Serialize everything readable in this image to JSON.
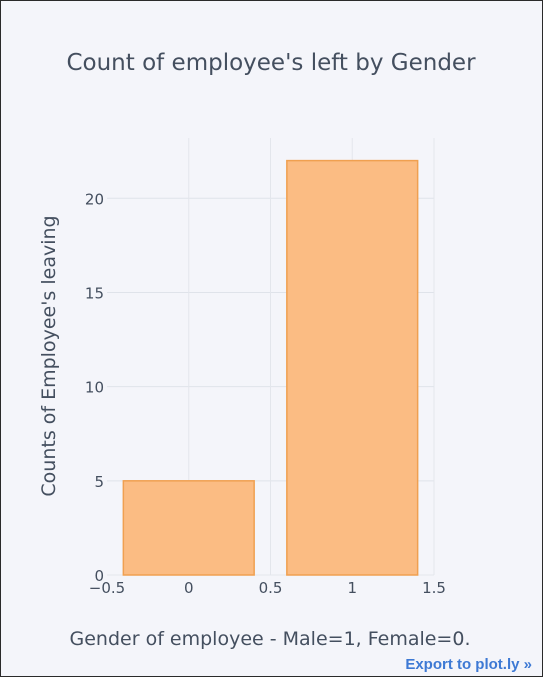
{
  "chart_data": {
    "type": "bar",
    "title": "Count of employee's left by Gender",
    "xlabel": "Gender of employee - Male=1, Female=0.",
    "ylabel": "Counts of Employee's leaving",
    "x": [
      0,
      1
    ],
    "values": [
      5,
      22
    ],
    "xlim": [
      -0.5,
      1.5
    ],
    "ylim": [
      0,
      23.2
    ],
    "xticks": [
      -0.5,
      0,
      0.5,
      1,
      1.5
    ],
    "xtick_labels": [
      "−0.5",
      "0",
      "0.5",
      "1",
      "1.5"
    ],
    "yticks": [
      0,
      5,
      10,
      15,
      20
    ],
    "ytick_labels": [
      "0",
      "5",
      "10",
      "15",
      "20"
    ],
    "grid": true,
    "legend": false,
    "bar_fill": "#fbbc83",
    "bar_stroke": "#f0a050"
  },
  "export_label": "Export to plot.ly »"
}
